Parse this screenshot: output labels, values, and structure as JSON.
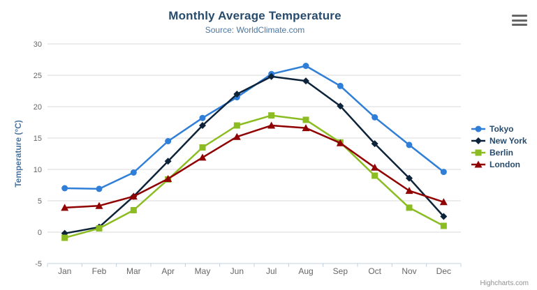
{
  "exporting": {
    "menu_icon": "hamburger-menu-icon"
  },
  "chart_data": {
    "type": "line",
    "title": "Monthly Average Temperature",
    "subtitle": "Source: WorldClimate.com",
    "xlabel": "",
    "ylabel": "Temperature (°C)",
    "ylim": [
      -5,
      30
    ],
    "y_tick_interval": 5,
    "grid": true,
    "legend_position": "right",
    "categories": [
      "Jan",
      "Feb",
      "Mar",
      "Apr",
      "May",
      "Jun",
      "Jul",
      "Aug",
      "Sep",
      "Oct",
      "Nov",
      "Dec"
    ],
    "series": [
      {
        "name": "Tokyo",
        "color": "#2f7ed8",
        "marker": "circle",
        "values": [
          7.0,
          6.9,
          9.5,
          14.5,
          18.2,
          21.5,
          25.2,
          26.5,
          23.3,
          18.3,
          13.9,
          9.6
        ]
      },
      {
        "name": "New York",
        "color": "#0d233a",
        "marker": "diamond",
        "values": [
          -0.2,
          0.8,
          5.7,
          11.3,
          17.0,
          22.0,
          24.8,
          24.1,
          20.1,
          14.1,
          8.6,
          2.5
        ]
      },
      {
        "name": "Berlin",
        "color": "#8bbc21",
        "marker": "square",
        "values": [
          -0.9,
          0.6,
          3.5,
          8.4,
          13.5,
          17.0,
          18.6,
          17.9,
          14.3,
          9.0,
          3.9,
          1.0
        ]
      },
      {
        "name": "London",
        "color": "#910000",
        "marker": "triangle",
        "values": [
          3.9,
          4.2,
          5.7,
          8.5,
          11.9,
          15.2,
          17.0,
          16.6,
          14.2,
          10.3,
          6.6,
          4.8
        ]
      }
    ],
    "colors": {
      "grid": "#d8d8d8",
      "axis_line": "#c0d0e0",
      "axis_labels": "#666666",
      "title": "#274b6d",
      "subtitle": "#4d759e",
      "axis_title": "#4d759e",
      "legend_text": "#274b6d",
      "credits": "#909090"
    },
    "credits": "Highcharts.com"
  }
}
